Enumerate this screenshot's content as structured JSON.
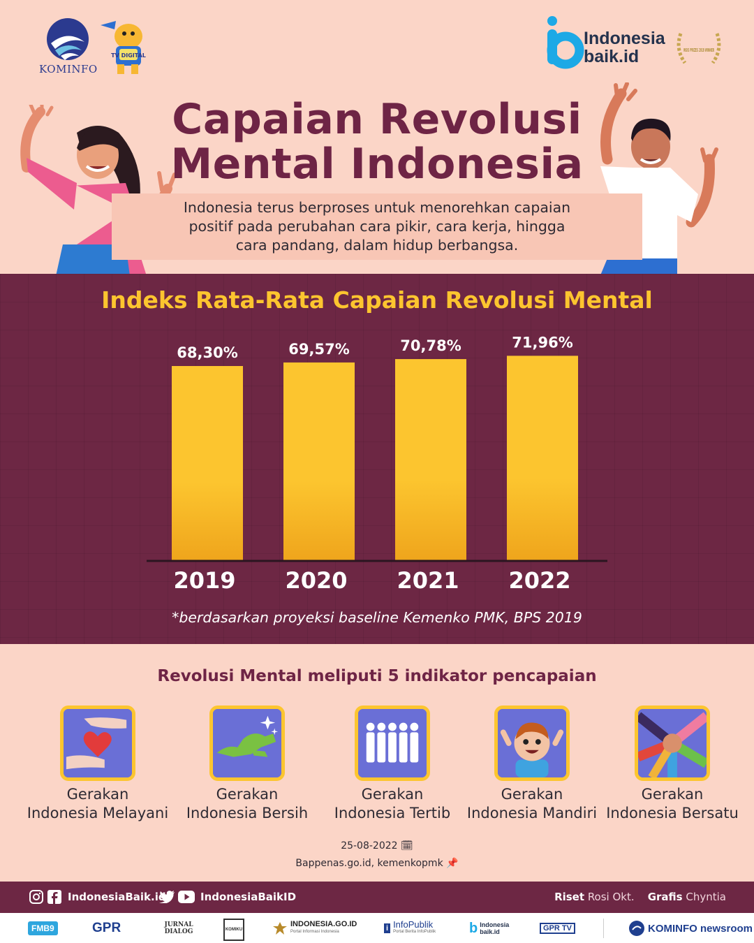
{
  "header": {
    "kominfo_label": "KOMINFO",
    "mascot_label": "TV DIGITAL",
    "brand_line1": "Indonesia",
    "brand_line2": "baik.id",
    "award_label": "WSIS PRIZES 2018 WINNER"
  },
  "title": {
    "line1": "Capaian Revolusi",
    "line2": "Mental Indonesia"
  },
  "subtitle": {
    "line1": "Indonesia terus berproses untuk menorehkan capaian",
    "line2": "positif pada perubahan cara pikir, cara kerja, hingga",
    "line3": "cara pandang, dalam hidup berbangsa."
  },
  "chart_data": {
    "type": "bar",
    "title": "Indeks Rata-Rata Capaian Revolusi Mental",
    "categories": [
      "2019",
      "2020",
      "2021",
      "2022"
    ],
    "values": [
      68.3,
      69.57,
      70.78,
      71.96
    ],
    "value_labels": [
      "68,30%",
      "69,57%",
      "70,78%",
      "71,96%"
    ],
    "xlabel": "",
    "ylabel": "",
    "ylim": [
      0,
      75
    ],
    "grid": false,
    "colors": {
      "bar": "#fcc52f",
      "bar_shade": "#f0a820",
      "background": "#6d2744"
    },
    "footnote": "*berdasarkan proyeksi baseline Kemenko PMK, BPS 2019"
  },
  "indicators": {
    "title": "Revolusi Mental meliputi 5 indikator pencapaian",
    "items": [
      {
        "line1": "Gerakan",
        "line2": "Indonesia Melayani",
        "icon": "heart-hands-icon"
      },
      {
        "line1": "Gerakan",
        "line2": "Indonesia Bersih",
        "icon": "clean-map-icon"
      },
      {
        "line1": "Gerakan",
        "line2": "Indonesia Tertib",
        "icon": "queue-people-icon"
      },
      {
        "line1": "Gerakan",
        "line2": "Indonesia Mandiri",
        "icon": "happy-child-icon"
      },
      {
        "line1": "Gerakan",
        "line2": "Indonesia Bersatu",
        "icon": "joined-hands-icon"
      }
    ]
  },
  "meta": {
    "date": "25-08-2022",
    "source": "Bappenas.go.id, kemenkopmk"
  },
  "social": {
    "handle1": "IndonesiaBaik.id",
    "handle2": "IndonesiaBaikID",
    "riset_label": "Riset",
    "riset_name": "Rosi Okt.",
    "grafis_label": "Grafis",
    "grafis_name": "Chyntia"
  },
  "partners": [
    "FMB9",
    "GPR",
    "JURNAL DIALOG",
    "KOMIKU",
    "INDONESIA.GO.ID",
    "InfoPublik",
    "Indonesia baik.id",
    "GPR TV",
    "KOMINFO newsroom"
  ],
  "partner_sub": {
    "indonesia_go_id": "Portal Informasi Indonesia",
    "infopublik": "Portal Berita InfoPublik"
  }
}
